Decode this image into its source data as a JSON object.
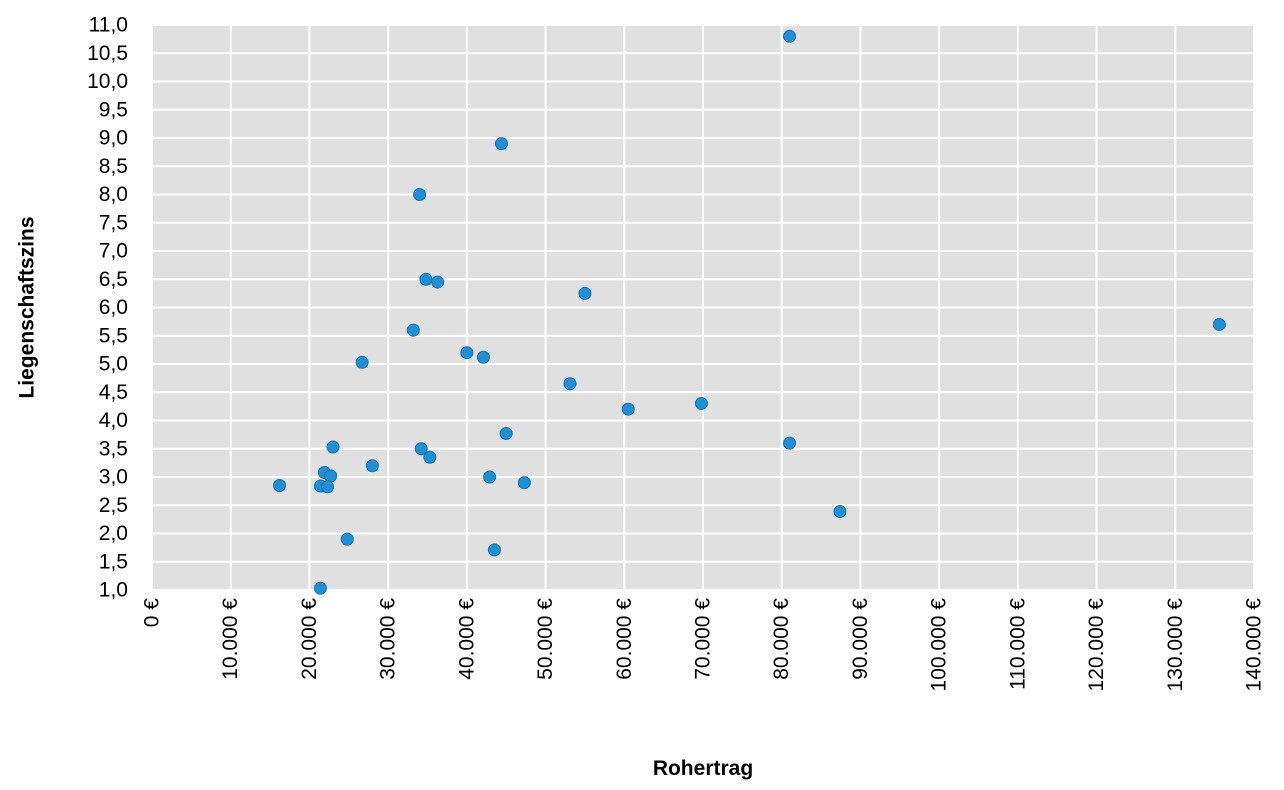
{
  "chart_data": {
    "type": "scatter",
    "title": "",
    "xlabel": "Rohertrag",
    "ylabel": "Liegenschaftszins",
    "xlim": [
      0,
      140000
    ],
    "ylim": [
      1.0,
      11.0
    ],
    "x_ticks": [
      0,
      10000,
      20000,
      30000,
      40000,
      50000,
      60000,
      70000,
      80000,
      90000,
      100000,
      110000,
      120000,
      130000,
      140000
    ],
    "x_tick_labels": [
      "0 €",
      "10.000 €",
      "20.000 €",
      "30.000 €",
      "40.000 €",
      "50.000 €",
      "60.000 €",
      "70.000 €",
      "80.000 €",
      "90.000 €",
      "100.000 €",
      "110.000 €",
      "120.000 €",
      "130.000 €",
      "140.000 €"
    ],
    "y_ticks": [
      1.0,
      1.5,
      2.0,
      2.5,
      3.0,
      3.5,
      4.0,
      4.5,
      5.0,
      5.5,
      6.0,
      6.5,
      7.0,
      7.5,
      8.0,
      8.5,
      9.0,
      9.5,
      10.0,
      10.5,
      11.0
    ],
    "y_tick_labels": [
      "1,0",
      "1,5",
      "2,0",
      "2,5",
      "3,0",
      "3,5",
      "4,0",
      "4,5",
      "5,0",
      "5,5",
      "6,0",
      "6,5",
      "7,0",
      "7,5",
      "8,0",
      "8,5",
      "9,0",
      "9,5",
      "10,0",
      "10,5",
      "11,0"
    ],
    "grid": true,
    "legend": "none",
    "colors": {
      "plot_background": "#e0e0e0",
      "grid": "#ffffff",
      "marker": "#1f8fd6",
      "marker_edge": "#1670a8"
    },
    "points": [
      {
        "x": 81000,
        "y": 10.8
      },
      {
        "x": 44400,
        "y": 8.9
      },
      {
        "x": 34000,
        "y": 8.0
      },
      {
        "x": 34800,
        "y": 6.5
      },
      {
        "x": 36300,
        "y": 6.45
      },
      {
        "x": 55000,
        "y": 6.25
      },
      {
        "x": 135600,
        "y": 5.7
      },
      {
        "x": 33200,
        "y": 5.6
      },
      {
        "x": 40000,
        "y": 5.2
      },
      {
        "x": 42100,
        "y": 5.12
      },
      {
        "x": 26700,
        "y": 5.03
      },
      {
        "x": 53100,
        "y": 4.65
      },
      {
        "x": 69800,
        "y": 4.3
      },
      {
        "x": 60500,
        "y": 4.2
      },
      {
        "x": 45000,
        "y": 3.77
      },
      {
        "x": 81000,
        "y": 3.6
      },
      {
        "x": 23000,
        "y": 3.53
      },
      {
        "x": 34200,
        "y": 3.5
      },
      {
        "x": 35300,
        "y": 3.35
      },
      {
        "x": 28000,
        "y": 3.2
      },
      {
        "x": 21900,
        "y": 3.08
      },
      {
        "x": 22700,
        "y": 3.02
      },
      {
        "x": 42900,
        "y": 3.0
      },
      {
        "x": 47300,
        "y": 2.9
      },
      {
        "x": 16200,
        "y": 2.85
      },
      {
        "x": 21400,
        "y": 2.84
      },
      {
        "x": 22300,
        "y": 2.83
      },
      {
        "x": 87400,
        "y": 2.39
      },
      {
        "x": 24800,
        "y": 1.9
      },
      {
        "x": 43500,
        "y": 1.71
      },
      {
        "x": 21400,
        "y": 1.03
      }
    ]
  }
}
